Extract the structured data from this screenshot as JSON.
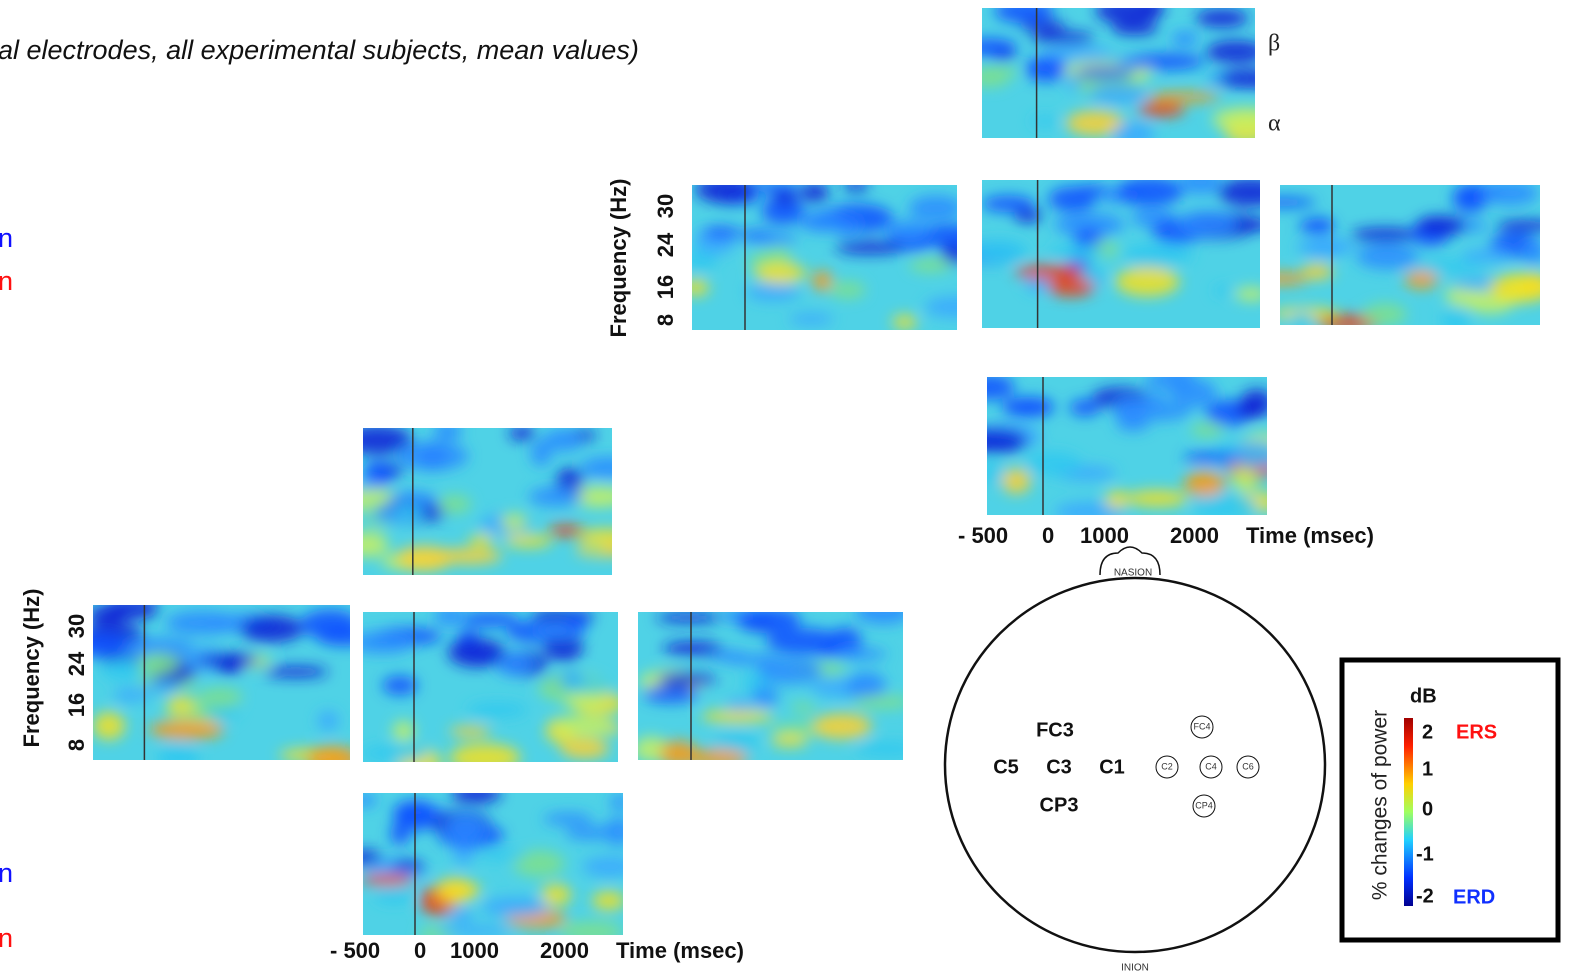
{
  "header": {
    "title": "al electrodes, all experimental subjects, mean values)"
  },
  "side_labels": [
    "n",
    "n",
    "n",
    "n"
  ],
  "top_cluster": {
    "bands": [
      "β",
      "α"
    ],
    "y_axis": {
      "label": "Frequency (Hz)",
      "ticks": [
        "8",
        "16",
        "24",
        "30"
      ]
    },
    "x_axis": {
      "ticks": [
        "- 500",
        "0",
        "1000",
        "2000"
      ],
      "label": "Time (msec)"
    }
  },
  "left_cluster": {
    "y_axis": {
      "label": "Frequency (Hz)",
      "ticks": [
        "8",
        "16",
        "24",
        "30"
      ]
    },
    "x_axis": {
      "ticks": [
        "- 500",
        "0",
        "1000",
        "2000"
      ],
      "label": "Time (msec)"
    }
  },
  "head": {
    "nasion": "NASION",
    "inion": "INION",
    "electrodes_left": [
      "FC3",
      "C5",
      "C3",
      "C1",
      "CP3"
    ],
    "electrodes_right": [
      "FC4",
      "C2",
      "C4",
      "C6",
      "CP4"
    ]
  },
  "legend": {
    "label": "% changes of power",
    "unit": "dB",
    "ticks": [
      "2",
      "1",
      "0",
      "-1",
      "-2"
    ],
    "ers": "ERS",
    "erd": "ERD"
  }
}
